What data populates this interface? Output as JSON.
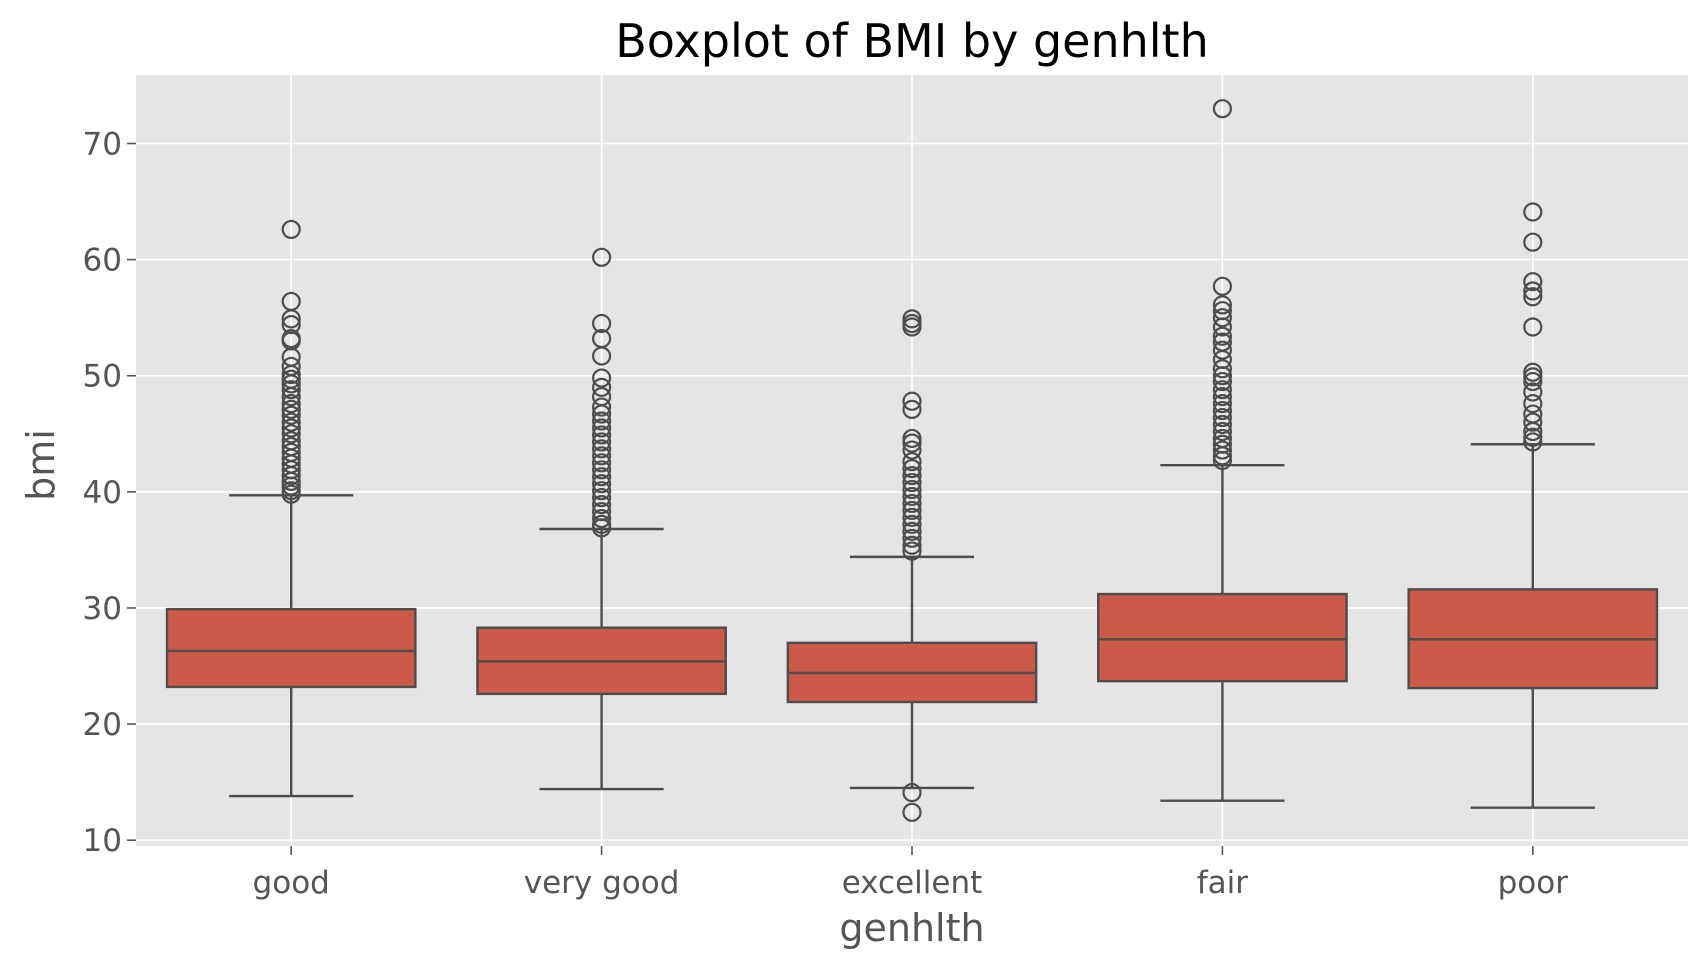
{
  "chart_data": {
    "type": "box",
    "title": "Boxplot of BMI by genhlth",
    "xlabel": "genhlth",
    "ylabel": "bmi",
    "ylim": [
      9.5,
      75.9
    ],
    "yticks": [
      10,
      20,
      30,
      40,
      50,
      60,
      70
    ],
    "grid": true,
    "colors": {
      "box": "#CC5A49",
      "edge": "#4D4D4D",
      "panel": "#E5E5E5",
      "grid": "#FFFFFF"
    },
    "categories": [
      "good",
      "very good",
      "excellent",
      "fair",
      "poor"
    ],
    "boxes": [
      {
        "category": "good",
        "whisker_low": 13.8,
        "q1": 23.2,
        "median": 26.3,
        "q3": 29.9,
        "whisker_high": 39.7,
        "outliers": [
          62.6,
          56.4,
          54.9,
          54.4,
          53.2,
          53.0,
          51.6,
          50.8,
          50.1,
          49.7,
          49.3,
          48.8,
          48.2,
          47.6,
          47.1,
          46.6,
          46.0,
          45.5,
          45.0,
          44.4,
          43.9,
          43.4,
          42.9,
          42.4,
          41.9,
          41.4,
          40.9,
          40.5,
          40.1,
          39.8
        ]
      },
      {
        "category": "very good",
        "whisker_low": 14.4,
        "q1": 22.6,
        "median": 25.4,
        "q3": 28.3,
        "whisker_high": 36.8,
        "outliers": [
          60.2,
          54.5,
          53.2,
          51.7,
          49.8,
          49.0,
          48.2,
          47.3,
          46.7,
          46.1,
          45.5,
          44.9,
          44.3,
          43.7,
          43.1,
          42.5,
          41.9,
          41.3,
          40.7,
          40.1,
          39.5,
          38.9,
          38.3,
          37.7,
          37.2,
          36.9
        ]
      },
      {
        "category": "excellent",
        "whisker_low": 14.5,
        "q1": 21.9,
        "median": 24.4,
        "q3": 27.0,
        "whisker_high": 34.4,
        "outliers": [
          54.9,
          54.5,
          54.2,
          47.8,
          47.1,
          44.6,
          44.2,
          43.6,
          42.6,
          42.0,
          41.4,
          40.8,
          40.2,
          39.6,
          39.0,
          38.4,
          37.8,
          37.2,
          36.6,
          36.0,
          35.4,
          34.9,
          14.1,
          12.4
        ]
      },
      {
        "category": "fair",
        "whisker_low": 13.4,
        "q1": 23.7,
        "median": 27.3,
        "q3": 31.2,
        "whisker_high": 42.3,
        "outliers": [
          73.0,
          57.7,
          56.1,
          55.6,
          55.0,
          54.2,
          53.4,
          52.9,
          52.2,
          51.4,
          50.6,
          50.0,
          49.5,
          48.8,
          48.2,
          47.6,
          47.0,
          46.4,
          45.8,
          45.2,
          44.6,
          44.1,
          43.6,
          43.1,
          42.7
        ]
      },
      {
        "category": "poor",
        "whisker_low": 12.8,
        "q1": 23.1,
        "median": 27.3,
        "q3": 31.6,
        "whisker_high": 44.1,
        "outliers": [
          64.1,
          61.5,
          58.1,
          57.3,
          56.8,
          54.2,
          50.3,
          49.9,
          49.5,
          48.6,
          47.6,
          46.7,
          46.0,
          45.2,
          44.7,
          44.3
        ]
      }
    ]
  }
}
